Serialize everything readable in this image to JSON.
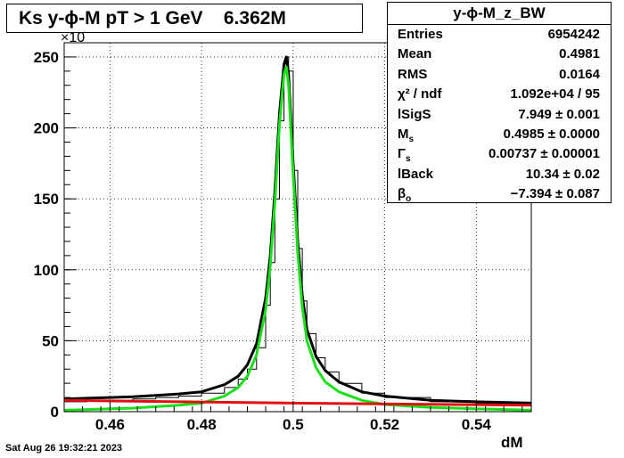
{
  "title": "Ks y-ϕ-M pT > 1 GeV    6.362M",
  "stats": {
    "name": "y-ϕ-M_z_BW",
    "rows": [
      {
        "label": "Entries",
        "value": "6954242"
      },
      {
        "label": "Mean",
        "value": "0.4981"
      },
      {
        "label": "RMS",
        "value": "0.0164"
      },
      {
        "label": "χ² / ndf",
        "value": "1.092e+04 / 95"
      },
      {
        "label": "lSigS",
        "value": "7.949 ± 0.001"
      },
      {
        "label": "M_s",
        "value": "0.4985 ± 0.0000"
      },
      {
        "label": "Γ_s",
        "value": "0.00737 ± 0.00001"
      },
      {
        "label": "lBack",
        "value": "10.34 ± 0.02"
      },
      {
        "label": "β_o",
        "value": "−7.394 ± 0.087"
      }
    ]
  },
  "footer": {
    "date": "Sat Aug 26 19:32:21 2023"
  },
  "chart_data": {
    "type": "line",
    "title": "Ks y-ϕ-M pT > 1 GeV    6.362M",
    "xlabel": "dM",
    "ylabel": "",
    "y_exponent_label": "×10",
    "xlim": [
      0.45,
      0.552
    ],
    "ylim": [
      0,
      260
    ],
    "xticks": [
      0.46,
      0.48,
      0.5,
      0.52,
      0.54
    ],
    "xtick_labels": [
      "0.46",
      "0.48",
      "0.5",
      "0.52",
      "0.54"
    ],
    "yticks": [
      0,
      50,
      100,
      150,
      200,
      250
    ],
    "ytick_labels": [
      "0",
      "50",
      "100",
      "150",
      "200",
      "250"
    ],
    "grid": true,
    "legend": "top-right stats box",
    "series": [
      {
        "kind": "histogram",
        "color": "#000000",
        "x": [
          0.45,
          0.455,
          0.46,
          0.465,
          0.47,
          0.475,
          0.48,
          0.485,
          0.488,
          0.49,
          0.492,
          0.494,
          0.495,
          0.496,
          0.497,
          0.498,
          0.4985,
          0.499,
          0.5,
          0.501,
          0.502,
          0.503,
          0.505,
          0.507,
          0.51,
          0.515,
          0.52,
          0.53,
          0.54,
          0.552
        ],
        "y": [
          7,
          8,
          8,
          9,
          10,
          11,
          13,
          17,
          23,
          30,
          45,
          75,
          105,
          150,
          205,
          245,
          250,
          240,
          170,
          115,
          78,
          55,
          38,
          28,
          20,
          13,
          10,
          7,
          6,
          5
        ]
      },
      {
        "kind": "fit-total",
        "color": "#000000",
        "x": [
          0.45,
          0.455,
          0.46,
          0.465,
          0.47,
          0.475,
          0.48,
          0.485,
          0.488,
          0.49,
          0.492,
          0.494,
          0.495,
          0.496,
          0.497,
          0.498,
          0.4985,
          0.499,
          0.5,
          0.501,
          0.502,
          0.503,
          0.505,
          0.507,
          0.51,
          0.515,
          0.52,
          0.53,
          0.54,
          0.552
        ],
        "y": [
          9,
          9.5,
          10,
          10.5,
          11.5,
          12.5,
          14,
          19,
          25,
          33,
          48,
          80,
          110,
          155,
          210,
          245,
          250,
          238,
          175,
          120,
          82,
          58,
          39,
          29,
          21,
          14,
          11,
          8,
          7,
          6
        ]
      },
      {
        "kind": "fit-signal",
        "color": "#19e019",
        "x": [
          0.45,
          0.455,
          0.46,
          0.465,
          0.47,
          0.475,
          0.48,
          0.485,
          0.488,
          0.49,
          0.492,
          0.494,
          0.495,
          0.496,
          0.497,
          0.498,
          0.4985,
          0.499,
          0.5,
          0.501,
          0.502,
          0.503,
          0.505,
          0.507,
          0.51,
          0.515,
          0.52,
          0.53,
          0.54,
          0.552
        ],
        "y": [
          1,
          1.5,
          2,
          2.5,
          3.5,
          4.5,
          6,
          11,
          17,
          25,
          40,
          72,
          103,
          147,
          202,
          238,
          243,
          230,
          167,
          112,
          74,
          50,
          31,
          21,
          14,
          8,
          5,
          3,
          2,
          1
        ]
      },
      {
        "kind": "fit-background",
        "color": "#e01010",
        "x": [
          0.45,
          0.5,
          0.552
        ],
        "y": [
          8,
          6,
          4.5
        ]
      }
    ]
  }
}
